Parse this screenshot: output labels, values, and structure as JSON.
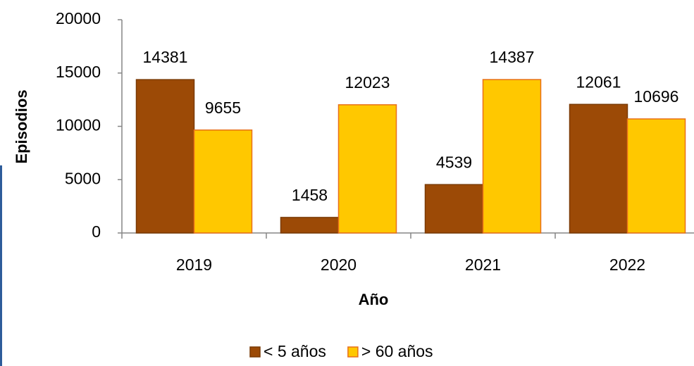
{
  "chart_data": {
    "type": "bar",
    "y_label": "Episodios",
    "x_label": "Año",
    "categories": [
      "2019",
      "2020",
      "2021",
      "2022"
    ],
    "series": [
      {
        "name": "< 5 años",
        "color": "#9c4a06",
        "values": [
          14381,
          1458,
          4539,
          12061
        ]
      },
      {
        "name": "> 60 años",
        "color": "#ffc800",
        "values": [
          9655,
          12023,
          14387,
          10696
        ]
      }
    ],
    "ylim": [
      0,
      20000
    ],
    "yticks": [
      0,
      5000,
      10000,
      15000,
      20000
    ],
    "grid": false,
    "legend": "bottom"
  }
}
